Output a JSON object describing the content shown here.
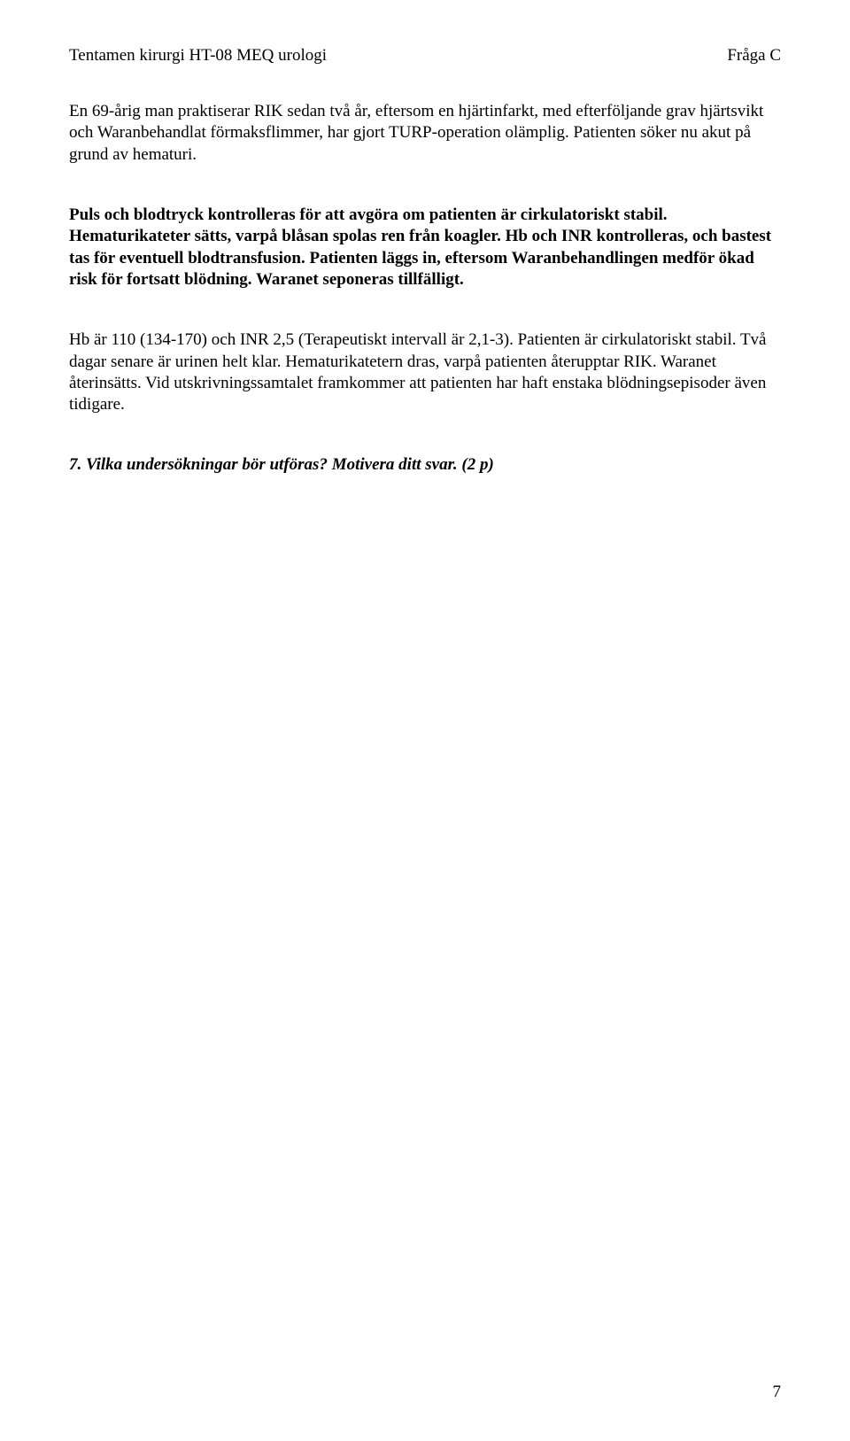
{
  "header": {
    "left": "Tentamen kirurgi HT-08 MEQ urologi",
    "right": "Fråga C"
  },
  "paragraphs": {
    "p1": "En 69-årig man praktiserar RIK sedan två år, eftersom en hjärtinfarkt, med efterföljande grav hjärtsvikt och Waranbehandlat förmaksflimmer, har gjort TURP-operation olämplig. Patienten söker nu akut på grund av hematuri.",
    "p2": "Puls och blodtryck kontrolleras för att avgöra om patienten är cirkulatoriskt stabil. Hematurikateter sätts, varpå blåsan spolas ren från koagler. Hb och INR kontrolleras, och bastest tas för eventuell blodtransfusion. Patienten läggs in, eftersom Waranbehandlingen medför ökad risk för fortsatt blödning. Waranet seponeras tillfälligt.",
    "p3": "Hb är 110 (134-170) och INR 2,5 (Terapeutiskt intervall är 2,1-3). Patienten är cirkulatoriskt stabil. Två dagar senare är urinen helt klar. Hematurikatetern dras, varpå patienten återupptar RIK. Waranet återinsätts. Vid utskrivningssamtalet framkommer att patienten har haft enstaka blödningsepisoder även tidigare.",
    "question": "7. Vilka undersökningar bör utföras? Motivera ditt svar. (2 p)"
  },
  "pagenum": "7"
}
